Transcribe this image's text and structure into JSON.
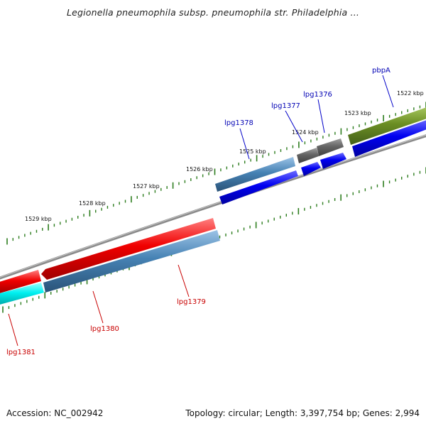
{
  "header": {
    "title": "Legionella pneumophila subsp. pneumophila str. Philadelphia ..."
  },
  "footer": {
    "accession": "Accession: NC_002942",
    "summary": "Topology: circular; Length: 3,397,754 bp; Genes: 2,994"
  },
  "scale_labels": [
    "1522 kbp",
    "1523 kbp",
    "1524 kbp",
    "1525 kbp",
    "1526 kbp",
    "1527 kbp",
    "1528 kbp",
    "1529 kbp"
  ],
  "genes": {
    "forward": [
      "pbpA",
      "lpg1376",
      "lpg1377",
      "lpg1378"
    ],
    "reverse": [
      "lpg1379",
      "lpg1380",
      "lpg1381"
    ]
  },
  "colors": {
    "backbone": "#808080",
    "tick": "#2d7d1e",
    "cds_blue": "#0000f0",
    "steelblue": "#4682b4",
    "red": "#f00000",
    "cyan": "#00f0f0",
    "olive": "#6b8e23",
    "gray": "#646464",
    "label_forward": "#0000b4",
    "label_reverse": "#c80000"
  }
}
